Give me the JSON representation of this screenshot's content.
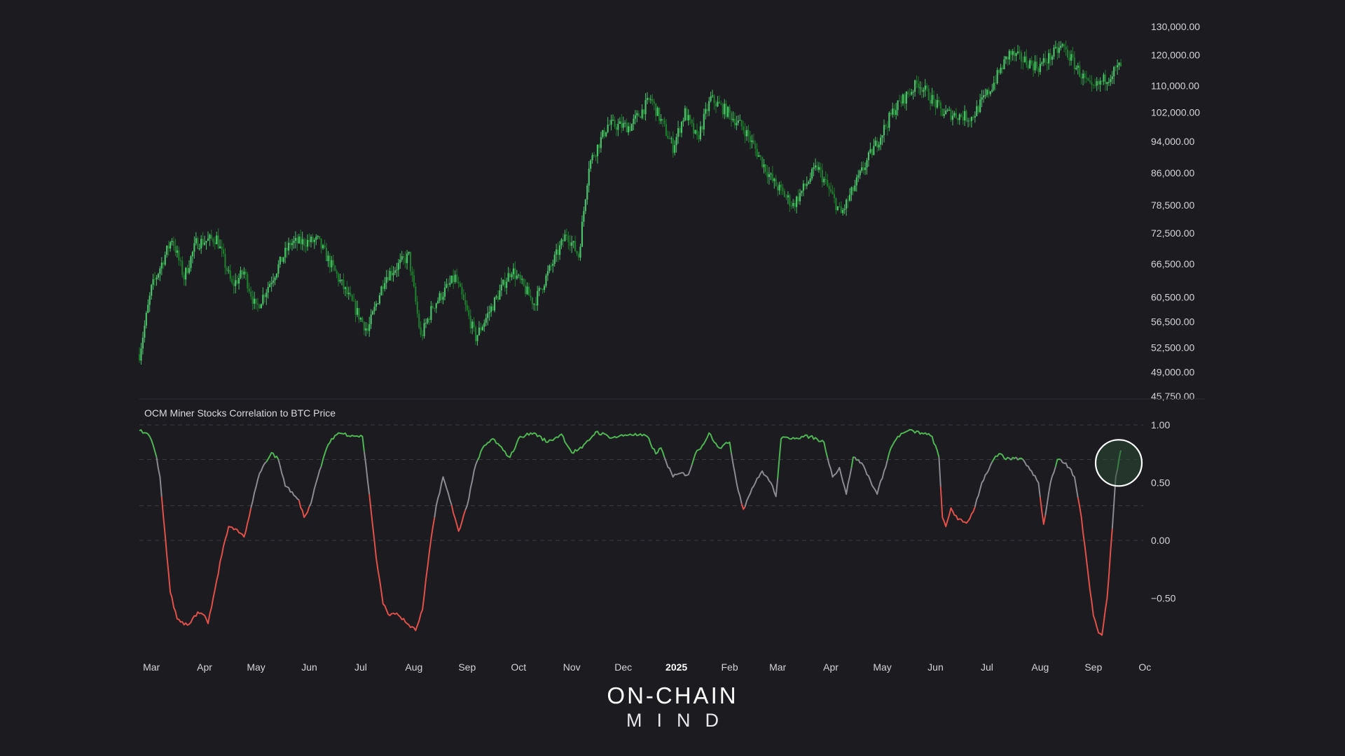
{
  "logo": {
    "top": "ON-CHAIN",
    "bottom": "MIND"
  },
  "chart_data": [
    {
      "type": "candlestick",
      "title": "",
      "y_scale": "log",
      "ylim": [
        45750,
        130000
      ],
      "yticks": [
        "130,000.00",
        "120,000.00",
        "110,000.00",
        "102,000.00",
        "94,000.00",
        "86,000.00",
        "78,500.00",
        "72,500.00",
        "66,500.00",
        "60,500.00",
        "56,500.00",
        "52,500.00",
        "49,000.00",
        "45,750.00"
      ],
      "ytick_values": [
        130000,
        120000,
        110000,
        102000,
        94000,
        86000,
        78500,
        72500,
        66500,
        60500,
        56500,
        52500,
        49000,
        45750
      ],
      "x_range": [
        "2024-02-23",
        "2025-09-17"
      ],
      "close_keypoints": [
        {
          "date": "2024-02-23",
          "close": 51500
        },
        {
          "date": "2024-03-01",
          "close": 62000
        },
        {
          "date": "2024-03-13",
          "close": 71500
        },
        {
          "date": "2024-03-20",
          "close": 64000
        },
        {
          "date": "2024-03-27",
          "close": 70500
        },
        {
          "date": "2024-04-08",
          "close": 71500
        },
        {
          "date": "2024-04-17",
          "close": 62500
        },
        {
          "date": "2024-04-24",
          "close": 65000
        },
        {
          "date": "2024-05-01",
          "close": 58500
        },
        {
          "date": "2024-05-21",
          "close": 70500
        },
        {
          "date": "2024-06-06",
          "close": 71000
        },
        {
          "date": "2024-06-24",
          "close": 60500
        },
        {
          "date": "2024-07-05",
          "close": 55000
        },
        {
          "date": "2024-07-15",
          "close": 64000
        },
        {
          "date": "2024-07-29",
          "close": 68000
        },
        {
          "date": "2024-08-05",
          "close": 54000
        },
        {
          "date": "2024-08-12",
          "close": 59000
        },
        {
          "date": "2024-08-25",
          "close": 64000
        },
        {
          "date": "2024-09-06",
          "close": 54000
        },
        {
          "date": "2024-09-27",
          "close": 65500
        },
        {
          "date": "2024-10-10",
          "close": 59500
        },
        {
          "date": "2024-10-29",
          "close": 72500
        },
        {
          "date": "2024-11-05",
          "close": 68000
        },
        {
          "date": "2024-11-11",
          "close": 88000
        },
        {
          "date": "2024-11-22",
          "close": 98500
        },
        {
          "date": "2024-12-05",
          "close": 98000
        },
        {
          "date": "2024-12-17",
          "close": 106000
        },
        {
          "date": "2024-12-30",
          "close": 92500
        },
        {
          "date": "2025-01-06",
          "close": 102000
        },
        {
          "date": "2025-01-13",
          "close": 94500
        },
        {
          "date": "2025-01-21",
          "close": 106000
        },
        {
          "date": "2025-01-31",
          "close": 102000
        },
        {
          "date": "2025-02-10",
          "close": 97000
        },
        {
          "date": "2025-02-26",
          "close": 84000
        },
        {
          "date": "2025-03-10",
          "close": 78500
        },
        {
          "date": "2025-03-24",
          "close": 87500
        },
        {
          "date": "2025-04-07",
          "close": 76500
        },
        {
          "date": "2025-04-21",
          "close": 88000
        },
        {
          "date": "2025-05-08",
          "close": 103000
        },
        {
          "date": "2025-05-22",
          "close": 111000
        },
        {
          "date": "2025-06-05",
          "close": 102000
        },
        {
          "date": "2025-06-22",
          "close": 100500
        },
        {
          "date": "2025-07-03",
          "close": 109000
        },
        {
          "date": "2025-07-14",
          "close": 120500
        },
        {
          "date": "2025-07-31",
          "close": 116000
        },
        {
          "date": "2025-08-14",
          "close": 123000
        },
        {
          "date": "2025-08-31",
          "close": 108500
        },
        {
          "date": "2025-09-17",
          "close": 116500
        }
      ]
    },
    {
      "type": "line",
      "title": "OCM Miner Stocks Correlation to BTC Price",
      "ylim": [
        -0.85,
        1.0
      ],
      "yticks": [
        "1.00",
        "0.50",
        "0.00",
        "−0.50"
      ],
      "ytick_values": [
        1.0,
        0.5,
        0.0,
        -0.5
      ],
      "reference_lines": [
        1.0,
        0.7,
        0.3,
        0.0
      ],
      "color_rules": {
        "above_0.7": "#4fb553",
        "between_0.3_0.7": "#8a8a90",
        "below_0.3": "#e2504a"
      },
      "highlight": {
        "date": "2025-09-17",
        "value": 0.78
      },
      "points": [
        {
          "date": "2024-02-23",
          "value": 0.95
        },
        {
          "date": "2024-02-27",
          "value": 0.93
        },
        {
          "date": "2024-02-29",
          "value": 0.9
        },
        {
          "date": "2024-03-04",
          "value": 0.72
        },
        {
          "date": "2024-03-06",
          "value": 0.55
        },
        {
          "date": "2024-03-08",
          "value": 0.2
        },
        {
          "date": "2024-03-12",
          "value": -0.45
        },
        {
          "date": "2024-03-16",
          "value": -0.68
        },
        {
          "date": "2024-03-20",
          "value": -0.73
        },
        {
          "date": "2024-03-24",
          "value": -0.71
        },
        {
          "date": "2024-03-28",
          "value": -0.62
        },
        {
          "date": "2024-04-01",
          "value": -0.65
        },
        {
          "date": "2024-04-03",
          "value": -0.72
        },
        {
          "date": "2024-04-08",
          "value": -0.35
        },
        {
          "date": "2024-04-12",
          "value": -0.05
        },
        {
          "date": "2024-04-15",
          "value": 0.12
        },
        {
          "date": "2024-04-19",
          "value": 0.1
        },
        {
          "date": "2024-04-24",
          "value": 0.03
        },
        {
          "date": "2024-04-28",
          "value": 0.28
        },
        {
          "date": "2024-05-03",
          "value": 0.58
        },
        {
          "date": "2024-05-07",
          "value": 0.68
        },
        {
          "date": "2024-05-10",
          "value": 0.76
        },
        {
          "date": "2024-05-14",
          "value": 0.7
        },
        {
          "date": "2024-05-18",
          "value": 0.47
        },
        {
          "date": "2024-05-22",
          "value": 0.42
        },
        {
          "date": "2024-05-26",
          "value": 0.35
        },
        {
          "date": "2024-05-29",
          "value": 0.2
        },
        {
          "date": "2024-06-02",
          "value": 0.32
        },
        {
          "date": "2024-06-06",
          "value": 0.55
        },
        {
          "date": "2024-06-10",
          "value": 0.75
        },
        {
          "date": "2024-06-14",
          "value": 0.88
        },
        {
          "date": "2024-06-18",
          "value": 0.93
        },
        {
          "date": "2024-06-26",
          "value": 0.91
        },
        {
          "date": "2024-07-02",
          "value": 0.9
        },
        {
          "date": "2024-07-06",
          "value": 0.4
        },
        {
          "date": "2024-07-10",
          "value": -0.15
        },
        {
          "date": "2024-07-14",
          "value": -0.55
        },
        {
          "date": "2024-07-18",
          "value": -0.65
        },
        {
          "date": "2024-07-22",
          "value": -0.63
        },
        {
          "date": "2024-07-28",
          "value": -0.72
        },
        {
          "date": "2024-08-02",
          "value": -0.78
        },
        {
          "date": "2024-08-06",
          "value": -0.6
        },
        {
          "date": "2024-08-10",
          "value": -0.1
        },
        {
          "date": "2024-08-14",
          "value": 0.3
        },
        {
          "date": "2024-08-18",
          "value": 0.55
        },
        {
          "date": "2024-08-22",
          "value": 0.35
        },
        {
          "date": "2024-08-27",
          "value": 0.08
        },
        {
          "date": "2024-09-01",
          "value": 0.3
        },
        {
          "date": "2024-09-05",
          "value": 0.6
        },
        {
          "date": "2024-09-10",
          "value": 0.8
        },
        {
          "date": "2024-09-16",
          "value": 0.88
        },
        {
          "date": "2024-09-22",
          "value": 0.78
        },
        {
          "date": "2024-09-26",
          "value": 0.72
        },
        {
          "date": "2024-10-02",
          "value": 0.9
        },
        {
          "date": "2024-10-10",
          "value": 0.93
        },
        {
          "date": "2024-10-18",
          "value": 0.85
        },
        {
          "date": "2024-10-26",
          "value": 0.92
        },
        {
          "date": "2024-11-01",
          "value": 0.76
        },
        {
          "date": "2024-11-07",
          "value": 0.8
        },
        {
          "date": "2024-11-15",
          "value": 0.94
        },
        {
          "date": "2024-11-25",
          "value": 0.89
        },
        {
          "date": "2024-12-05",
          "value": 0.92
        },
        {
          "date": "2024-12-15",
          "value": 0.9
        },
        {
          "date": "2024-12-20",
          "value": 0.75
        },
        {
          "date": "2024-12-23",
          "value": 0.8
        },
        {
          "date": "2024-12-26",
          "value": 0.68
        },
        {
          "date": "2024-12-30",
          "value": 0.55
        },
        {
          "date": "2025-01-03",
          "value": 0.58
        },
        {
          "date": "2025-01-08",
          "value": 0.57
        },
        {
          "date": "2025-01-12",
          "value": 0.75
        },
        {
          "date": "2025-01-16",
          "value": 0.82
        },
        {
          "date": "2025-01-20",
          "value": 0.93
        },
        {
          "date": "2025-01-26",
          "value": 0.8
        },
        {
          "date": "2025-02-01",
          "value": 0.85
        },
        {
          "date": "2025-02-05",
          "value": 0.5
        },
        {
          "date": "2025-02-09",
          "value": 0.27
        },
        {
          "date": "2025-02-14",
          "value": 0.45
        },
        {
          "date": "2025-02-20",
          "value": 0.6
        },
        {
          "date": "2025-02-25",
          "value": 0.5
        },
        {
          "date": "2025-02-28",
          "value": 0.38
        },
        {
          "date": "2025-03-03",
          "value": 0.88
        },
        {
          "date": "2025-03-10",
          "value": 0.89
        },
        {
          "date": "2025-03-20",
          "value": 0.9
        },
        {
          "date": "2025-03-28",
          "value": 0.85
        },
        {
          "date": "2025-04-02",
          "value": 0.55
        },
        {
          "date": "2025-04-06",
          "value": 0.63
        },
        {
          "date": "2025-04-10",
          "value": 0.4
        },
        {
          "date": "2025-04-14",
          "value": 0.72
        },
        {
          "date": "2025-04-19",
          "value": 0.67
        },
        {
          "date": "2025-04-24",
          "value": 0.52
        },
        {
          "date": "2025-04-28",
          "value": 0.4
        },
        {
          "date": "2025-05-02",
          "value": 0.6
        },
        {
          "date": "2025-05-06",
          "value": 0.8
        },
        {
          "date": "2025-05-10",
          "value": 0.9
        },
        {
          "date": "2025-05-16",
          "value": 0.95
        },
        {
          "date": "2025-05-24",
          "value": 0.93
        },
        {
          "date": "2025-05-30",
          "value": 0.9
        },
        {
          "date": "2025-06-03",
          "value": 0.72
        },
        {
          "date": "2025-06-05",
          "value": 0.2
        },
        {
          "date": "2025-06-07",
          "value": 0.12
        },
        {
          "date": "2025-06-10",
          "value": 0.28
        },
        {
          "date": "2025-06-14",
          "value": 0.18
        },
        {
          "date": "2025-06-19",
          "value": 0.15
        },
        {
          "date": "2025-06-23",
          "value": 0.25
        },
        {
          "date": "2025-06-28",
          "value": 0.5
        },
        {
          "date": "2025-07-04",
          "value": 0.68
        },
        {
          "date": "2025-07-08",
          "value": 0.75
        },
        {
          "date": "2025-07-12",
          "value": 0.7
        },
        {
          "date": "2025-07-17",
          "value": 0.71
        },
        {
          "date": "2025-07-22",
          "value": 0.7
        },
        {
          "date": "2025-07-27",
          "value": 0.6
        },
        {
          "date": "2025-07-31",
          "value": 0.5
        },
        {
          "date": "2025-08-03",
          "value": 0.14
        },
        {
          "date": "2025-08-07",
          "value": 0.5
        },
        {
          "date": "2025-08-11",
          "value": 0.7
        },
        {
          "date": "2025-08-16",
          "value": 0.67
        },
        {
          "date": "2025-08-21",
          "value": 0.55
        },
        {
          "date": "2025-08-25",
          "value": 0.2
        },
        {
          "date": "2025-08-29",
          "value": -0.3
        },
        {
          "date": "2025-09-01",
          "value": -0.65
        },
        {
          "date": "2025-09-04",
          "value": -0.8
        },
        {
          "date": "2025-09-06",
          "value": -0.82
        },
        {
          "date": "2025-09-09",
          "value": -0.5
        },
        {
          "date": "2025-09-12",
          "value": 0.1
        },
        {
          "date": "2025-09-14",
          "value": 0.55
        },
        {
          "date": "2025-09-17",
          "value": 0.78
        }
      ]
    }
  ],
  "xaxis": {
    "ticks": [
      {
        "label": "Mar",
        "date": "2024-03-01",
        "bold": false
      },
      {
        "label": "Apr",
        "date": "2024-04-01",
        "bold": false
      },
      {
        "label": "May",
        "date": "2024-05-01",
        "bold": false
      },
      {
        "label": "Jun",
        "date": "2024-06-01",
        "bold": false
      },
      {
        "label": "Jul",
        "date": "2024-07-01",
        "bold": false
      },
      {
        "label": "Aug",
        "date": "2024-08-01",
        "bold": false
      },
      {
        "label": "Sep",
        "date": "2024-09-01",
        "bold": false
      },
      {
        "label": "Oct",
        "date": "2024-10-01",
        "bold": false
      },
      {
        "label": "Nov",
        "date": "2024-11-01",
        "bold": false
      },
      {
        "label": "Dec",
        "date": "2024-12-01",
        "bold": false
      },
      {
        "label": "2025",
        "date": "2025-01-01",
        "bold": true
      },
      {
        "label": "Feb",
        "date": "2025-02-01",
        "bold": false
      },
      {
        "label": "Mar",
        "date": "2025-03-01",
        "bold": false
      },
      {
        "label": "Apr",
        "date": "2025-04-01",
        "bold": false
      },
      {
        "label": "May",
        "date": "2025-05-01",
        "bold": false
      },
      {
        "label": "Jun",
        "date": "2025-06-01",
        "bold": false
      },
      {
        "label": "Jul",
        "date": "2025-07-01",
        "bold": false
      },
      {
        "label": "Aug",
        "date": "2025-08-01",
        "bold": false
      },
      {
        "label": "Sep",
        "date": "2025-09-01",
        "bold": false
      },
      {
        "label": "Oc",
        "date": "2025-10-01",
        "bold": false
      }
    ]
  },
  "colors": {
    "background": "#1b1b20",
    "candle_up": "#4cc06a",
    "candle_down": "#1e7a2c",
    "corr_green": "#4fb553",
    "corr_gray": "#8a8a90",
    "corr_red": "#e2504a",
    "grid": "#3a3a40",
    "highlight_fill": "#2c4d34"
  }
}
